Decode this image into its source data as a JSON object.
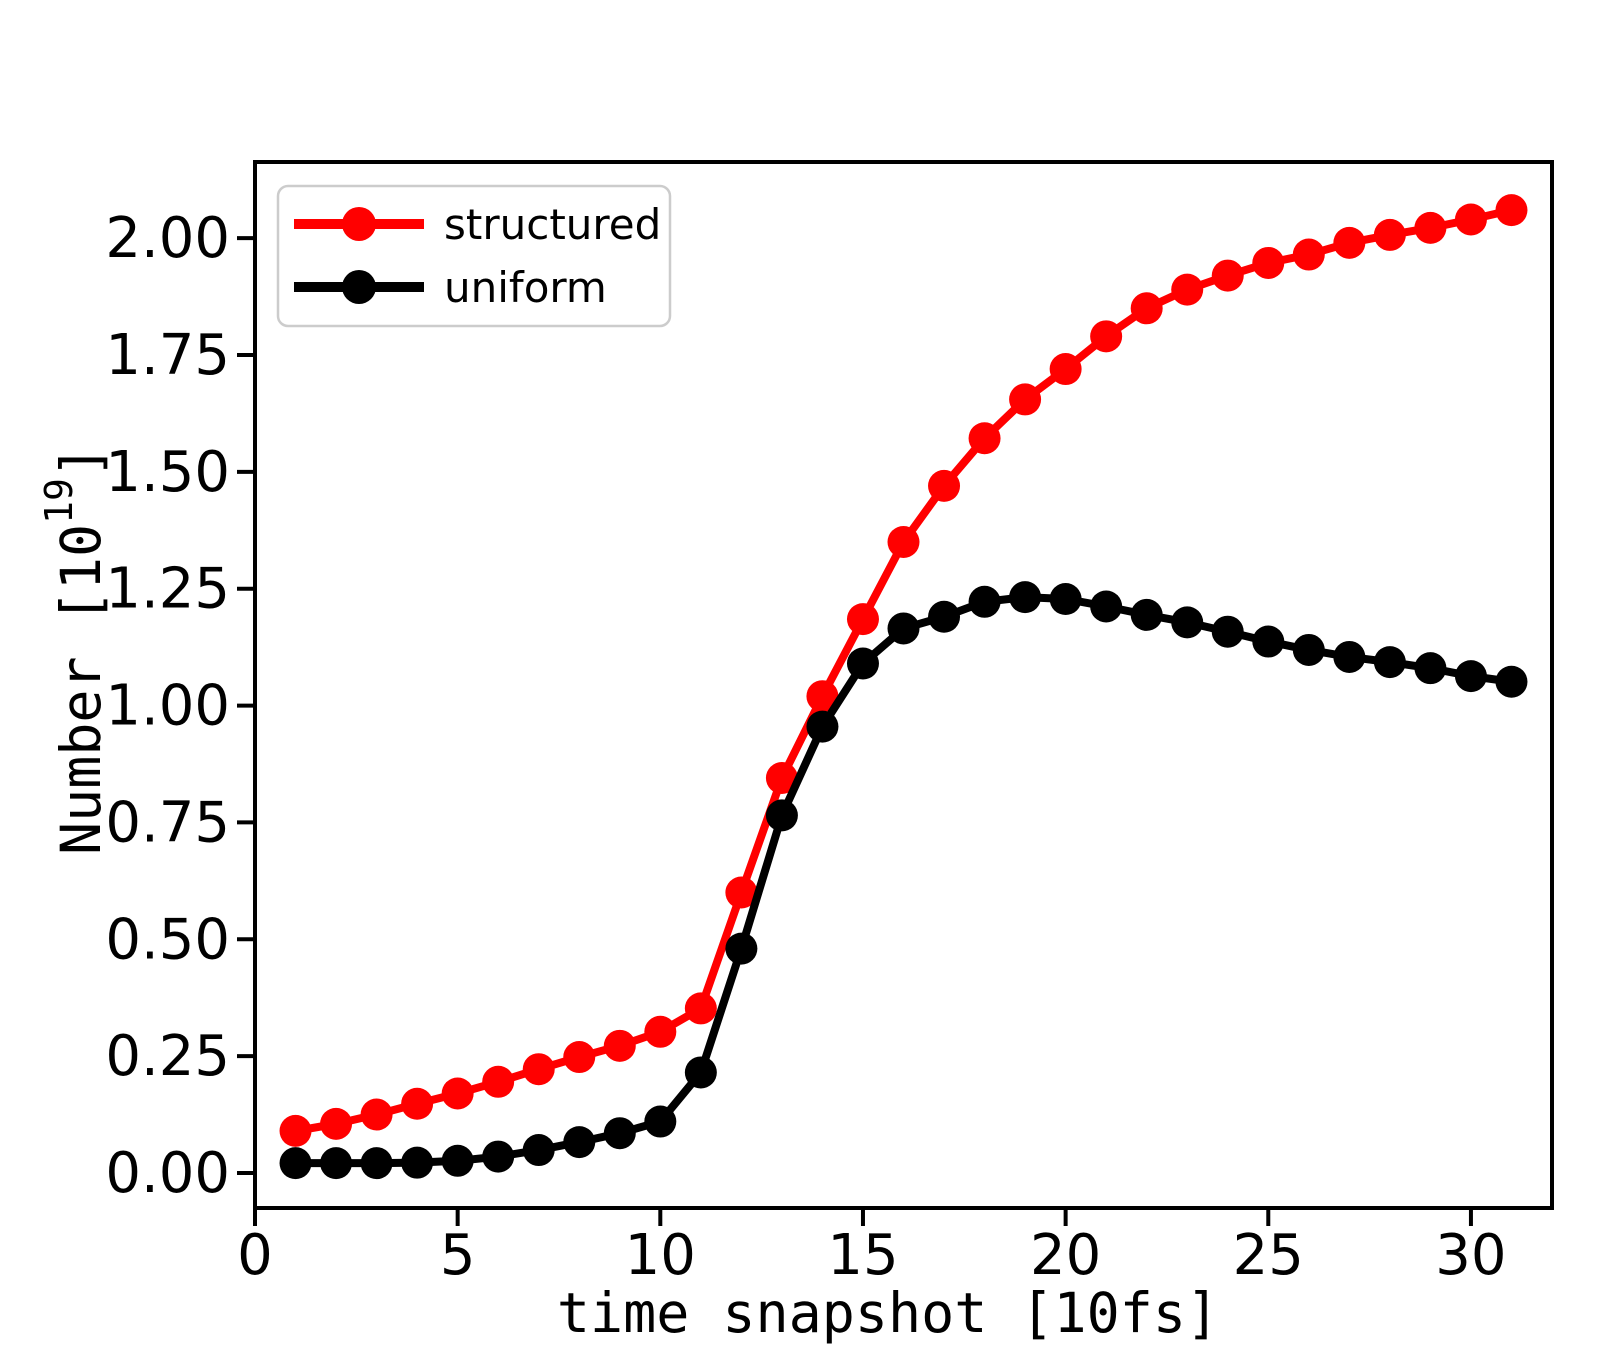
{
  "figure": {
    "background": "#ffffff",
    "frame_color": "#000000"
  },
  "chart_data": {
    "type": "line",
    "title": "",
    "xlabel": "time snapshot [10fs]",
    "ylabel_base": "Number [10",
    "ylabel_sup": "19",
    "ylabel_close": "]",
    "xlim": [
      0,
      32
    ],
    "ylim": [
      -0.075,
      2.163
    ],
    "grid": false,
    "marker": "circle",
    "x": [
      1,
      2,
      3,
      4,
      5,
      6,
      7,
      8,
      9,
      10,
      11,
      12,
      13,
      14,
      15,
      16,
      17,
      18,
      19,
      20,
      21,
      22,
      23,
      24,
      25,
      26,
      27,
      28,
      29,
      30,
      31
    ],
    "series": [
      {
        "name": "structured",
        "color": "#ff0000",
        "values": [
          0.09,
          0.105,
          0.125,
          0.148,
          0.17,
          0.195,
          0.222,
          0.248,
          0.272,
          0.302,
          0.352,
          0.6,
          0.845,
          1.02,
          1.185,
          1.35,
          1.47,
          1.572,
          1.655,
          1.72,
          1.79,
          1.85,
          1.89,
          1.92,
          1.947,
          1.965,
          1.99,
          2.007,
          2.022,
          2.04,
          2.06
        ]
      },
      {
        "name": "uniform",
        "color": "#000000",
        "values": [
          0.021,
          0.021,
          0.021,
          0.022,
          0.026,
          0.035,
          0.049,
          0.066,
          0.085,
          0.11,
          0.215,
          0.48,
          0.765,
          0.955,
          1.09,
          1.165,
          1.19,
          1.222,
          1.232,
          1.228,
          1.212,
          1.194,
          1.178,
          1.158,
          1.137,
          1.119,
          1.104,
          1.093,
          1.08,
          1.063,
          1.051
        ]
      }
    ],
    "xticks": {
      "values": [
        0,
        5,
        10,
        15,
        20,
        25,
        30
      ],
      "labels": [
        "0",
        "5",
        "10",
        "15",
        "20",
        "25",
        "30"
      ]
    },
    "yticks": {
      "values": [
        0.0,
        0.25,
        0.5,
        0.75,
        1.0,
        1.25,
        1.5,
        1.75,
        2.0
      ],
      "labels": [
        "0.00",
        "0.25",
        "0.50",
        "0.75",
        "1.00",
        "1.25",
        "1.50",
        "1.75",
        "2.00"
      ]
    },
    "legend": {
      "position": "upper left",
      "border_color": "#cccccc",
      "entries": [
        {
          "label": "structured",
          "color": "#ff0000"
        },
        {
          "label": "uniform",
          "color": "#000000"
        }
      ]
    }
  }
}
